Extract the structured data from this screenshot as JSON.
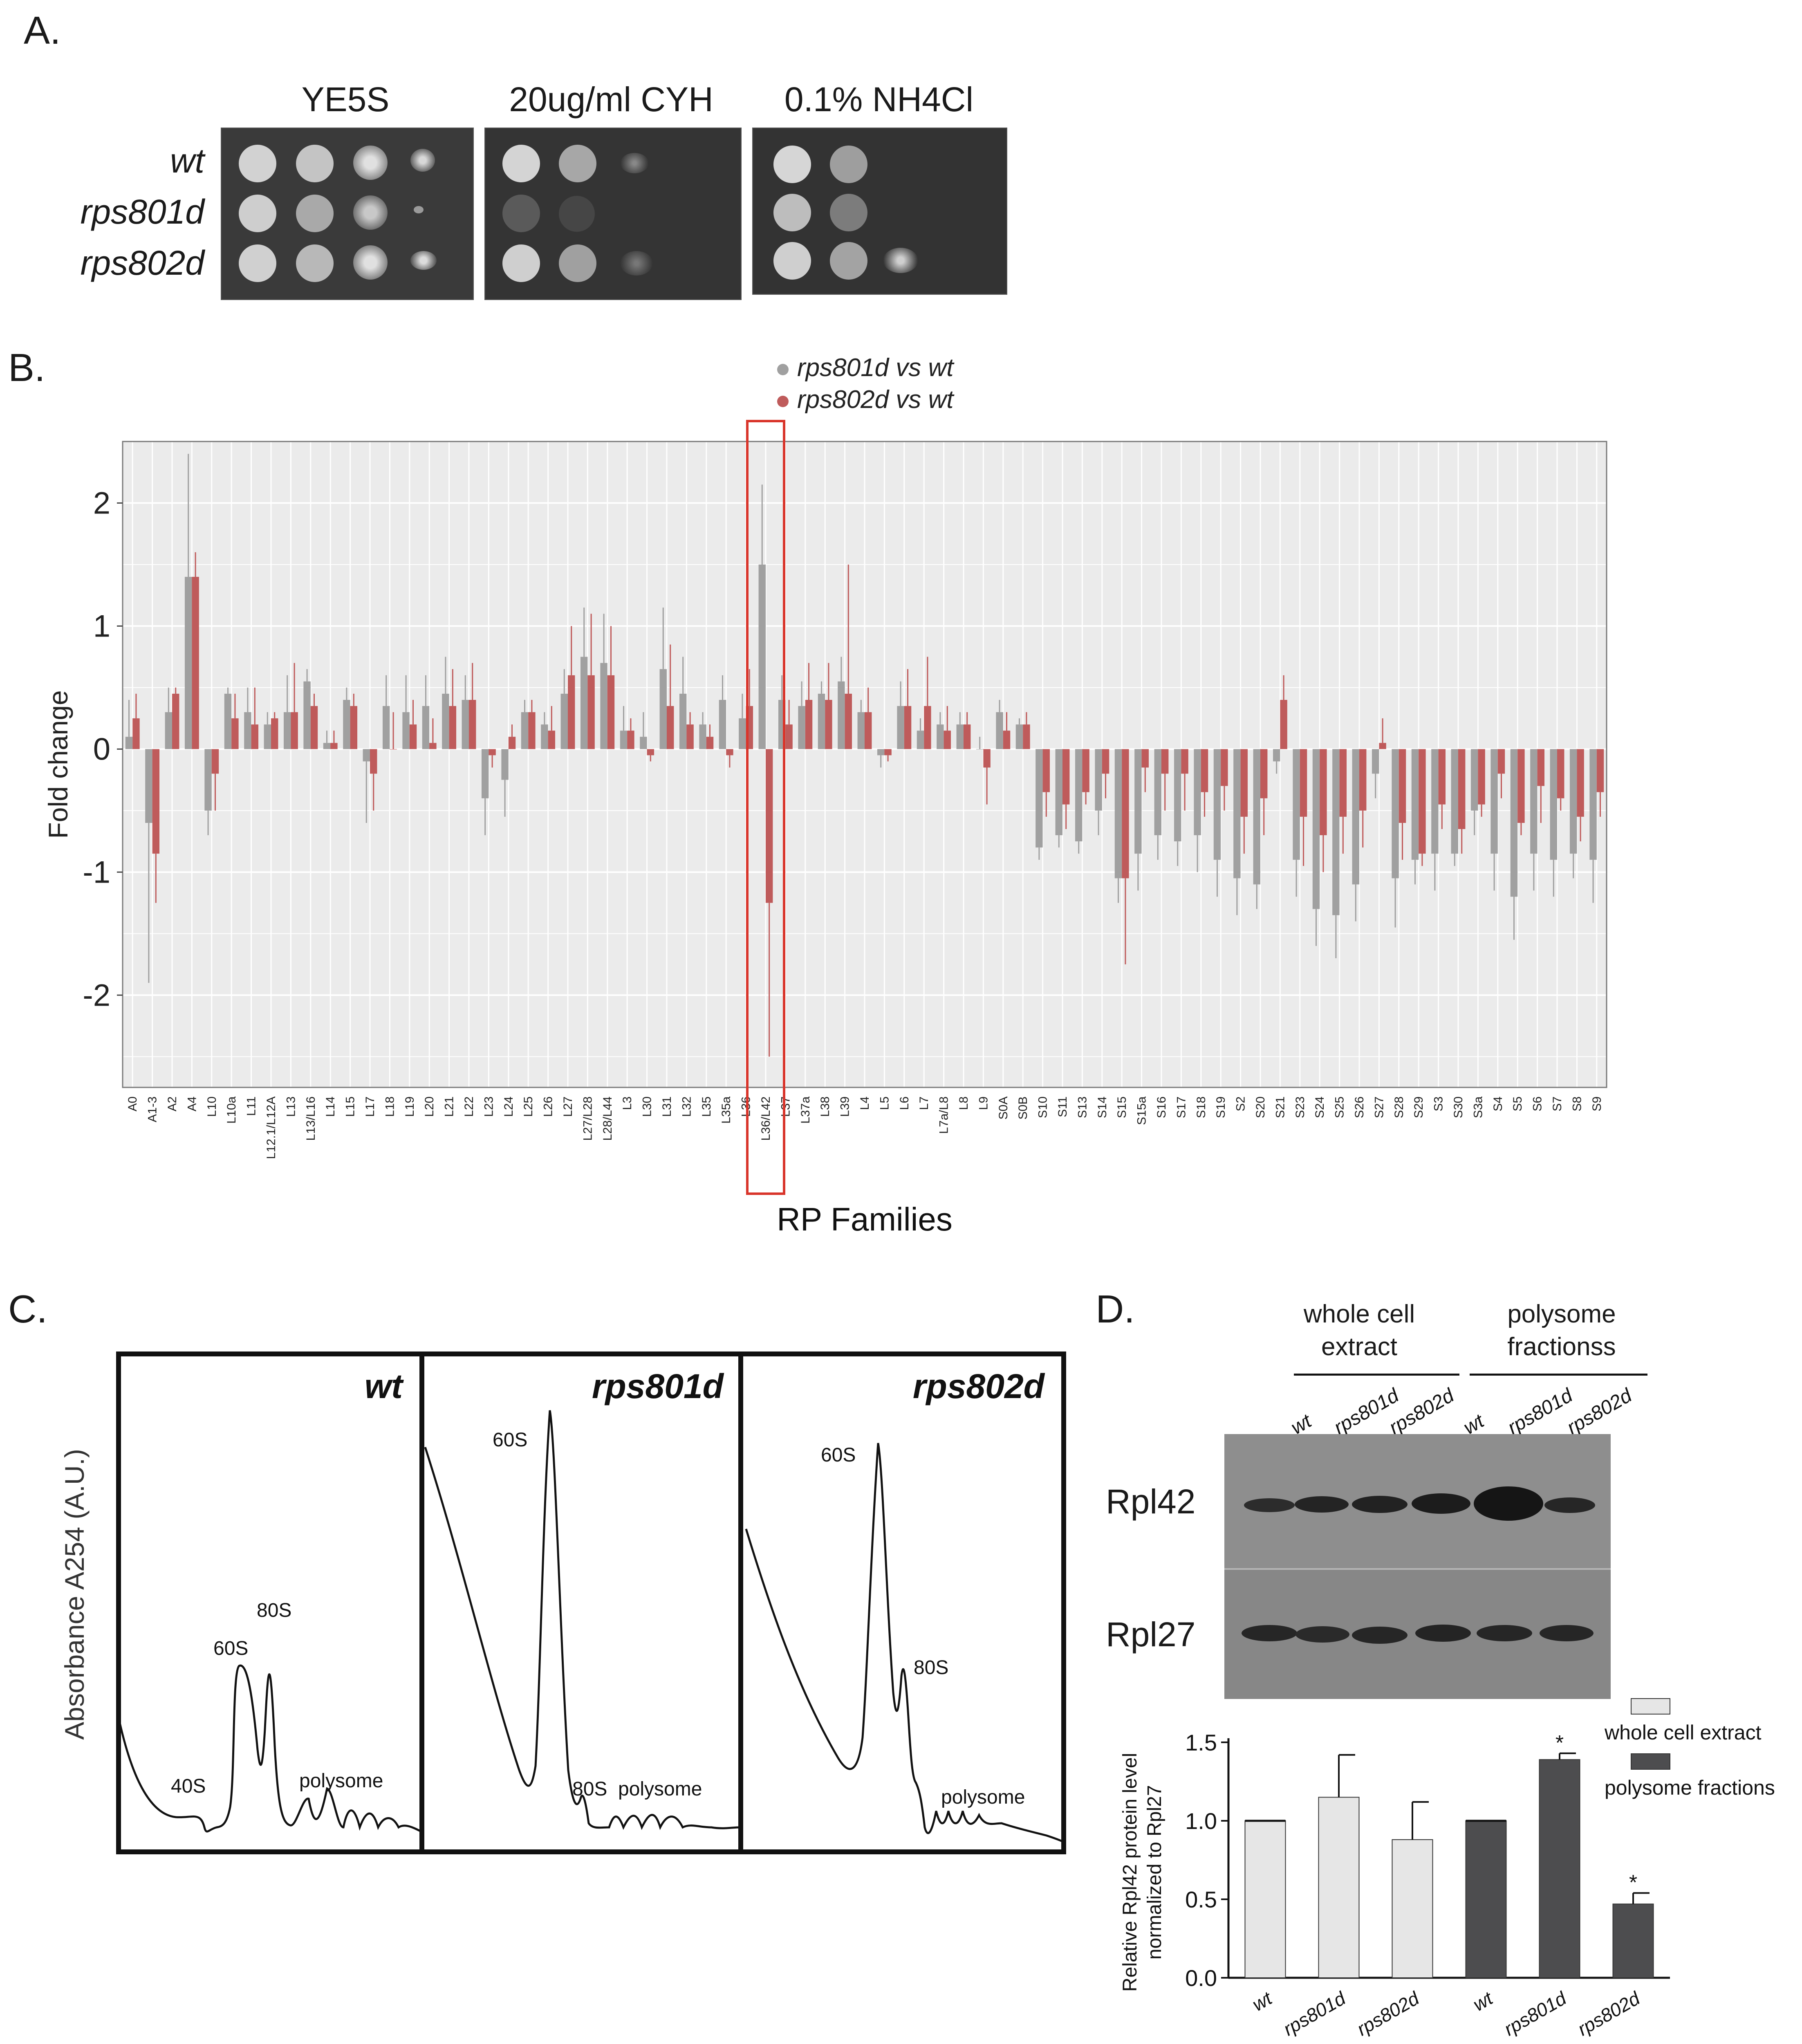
{
  "panels": {
    "a": {
      "label": "A.",
      "plate_titles": [
        "YE5S",
        "20ug/ml CYH",
        "0.1% NH4Cl"
      ],
      "strains": [
        "wt",
        "rps801d",
        "rps802d"
      ]
    },
    "b": {
      "label": "B.",
      "legend": [
        "rps801d vs wt",
        "rps802d vs wt"
      ]
    },
    "c": {
      "label": "C.",
      "ylabel": "Absorbance A254 (A.U.)",
      "profiles": [
        {
          "title": "wt",
          "peaks": [
            "40S",
            "60S",
            "80S",
            "polysome"
          ]
        },
        {
          "title": "rps801d",
          "peaks": [
            "60S",
            "80S",
            "polysome"
          ]
        },
        {
          "title": "rps802d",
          "peaks": [
            "60S",
            "80S",
            "polysome"
          ]
        }
      ]
    },
    "d": {
      "label": "D.",
      "groups": [
        "whole cell",
        "extract",
        "polysome",
        "fractionss"
      ],
      "lanes": [
        "wt",
        "rps801d",
        "rps802d",
        "wt",
        "rps801d",
        "rps802d"
      ],
      "blots": [
        "Rpl42",
        "Rpl27"
      ]
    }
  },
  "chart_data": [
    {
      "type": "bar",
      "title": "",
      "xlabel": "RP Families",
      "ylabel": "Fold change",
      "ylim": [
        -2.75,
        2.5
      ],
      "yticks": [
        -2,
        -1,
        0,
        1,
        2
      ],
      "grid": true,
      "legend_position": "top-center",
      "highlight_category": "L36/L42",
      "colors": {
        "rps801d vs wt": "#a0a0a0",
        "rps802d vs wt": "#bf5b5b",
        "highlight_box": "#d9352b"
      },
      "categories": [
        "A0",
        "A1-3",
        "A2",
        "A4",
        "L10",
        "L10a",
        "L11",
        "L12.1/L12A",
        "L13",
        "L13/L16",
        "L14",
        "L15",
        "L17",
        "L18",
        "L19",
        "L20",
        "L21",
        "L22",
        "L23",
        "L24",
        "L25",
        "L26",
        "L27",
        "L27/L28",
        "L28/L44",
        "L3",
        "L30",
        "L31",
        "L32",
        "L35",
        "L35a",
        "L36",
        "L36/L42",
        "L37",
        "L37a",
        "L38",
        "L39",
        "L4",
        "L5",
        "L6",
        "L7",
        "L7a/L8",
        "L8",
        "L9",
        "S0A",
        "S0B",
        "S10",
        "S11",
        "S13",
        "S14",
        "S15",
        "S15a",
        "S16",
        "S17",
        "S18",
        "S19",
        "S2",
        "S20",
        "S21",
        "S23",
        "S24",
        "S25",
        "S26",
        "S27",
        "S28",
        "S29",
        "S3",
        "S30",
        "S3a",
        "S4",
        "S5",
        "S6",
        "S7",
        "S8",
        "S9"
      ],
      "series": [
        {
          "name": "rps801d vs wt",
          "values": [
            0.1,
            -0.6,
            0.3,
            1.4,
            -0.5,
            0.45,
            0.3,
            0.2,
            0.3,
            0.55,
            0.05,
            0.4,
            -0.1,
            0.35,
            0.3,
            0.35,
            0.45,
            0.4,
            -0.4,
            -0.25,
            0.3,
            0.2,
            0.45,
            0.75,
            0.7,
            0.15,
            0.1,
            0.65,
            0.45,
            0.2,
            0.4,
            0.25,
            1.5,
            0.4,
            0.35,
            0.45,
            0.55,
            0.3,
            -0.05,
            0.35,
            0.15,
            0.2,
            0.2,
            0.0,
            0.3,
            0.2,
            -0.8,
            -0.7,
            -0.75,
            -0.5,
            -1.05,
            -0.85,
            -0.7,
            -0.75,
            -0.7,
            -0.9,
            -1.05,
            -1.1,
            -0.1,
            -0.9,
            -1.3,
            -1.35,
            -1.1,
            -0.2,
            -1.05,
            -0.9,
            -0.85,
            -0.85,
            -0.5,
            -0.85,
            -1.2,
            -0.85,
            -0.9,
            -0.85,
            -0.9
          ],
          "errors": [
            0.3,
            1.3,
            0.2,
            1.0,
            0.2,
            0.05,
            0.2,
            0.1,
            0.3,
            0.1,
            0.1,
            0.1,
            0.5,
            0.25,
            0.3,
            0.25,
            0.3,
            0.2,
            0.3,
            0.3,
            0.1,
            0.1,
            0.2,
            0.4,
            0.4,
            0.2,
            0.2,
            0.5,
            0.3,
            0.1,
            0.2,
            0.2,
            0.65,
            0.2,
            0.2,
            0.1,
            0.2,
            0.1,
            0.1,
            0.2,
            0.1,
            0.1,
            0.1,
            0.1,
            0.1,
            0.05,
            0.1,
            0.1,
            0.1,
            0.2,
            0.2,
            0.3,
            0.2,
            0.2,
            0.3,
            0.3,
            0.3,
            0.2,
            0.1,
            0.3,
            0.3,
            0.35,
            0.3,
            0.2,
            0.4,
            0.2,
            0.3,
            0.1,
            0.2,
            0.3,
            0.35,
            0.3,
            0.3,
            0.2,
            0.35
          ]
        },
        {
          "name": "rps802d vs wt",
          "values": [
            0.25,
            -0.85,
            0.45,
            1.4,
            -0.2,
            0.25,
            0.2,
            0.25,
            0.3,
            0.35,
            0.05,
            0.35,
            -0.2,
            0.0,
            0.2,
            0.05,
            0.35,
            0.4,
            -0.05,
            0.1,
            0.3,
            0.15,
            0.6,
            0.6,
            0.6,
            0.15,
            -0.05,
            0.35,
            0.2,
            0.1,
            -0.05,
            0.35,
            -1.25,
            0.2,
            0.4,
            0.4,
            0.45,
            0.3,
            -0.05,
            0.35,
            0.35,
            0.15,
            0.2,
            -0.15,
            0.15,
            0.2,
            -0.35,
            -0.45,
            -0.35,
            -0.2,
            -1.05,
            -0.15,
            -0.2,
            -0.2,
            -0.35,
            -0.3,
            -0.55,
            -0.4,
            0.4,
            -0.55,
            -0.7,
            -0.55,
            -0.5,
            0.05,
            -0.6,
            -0.85,
            -0.45,
            -0.65,
            -0.45,
            -0.2,
            -0.6,
            -0.3,
            -0.4,
            -0.55,
            -0.35
          ],
          "errors": [
            0.2,
            0.4,
            0.05,
            0.2,
            0.3,
            0.2,
            0.3,
            0.05,
            0.4,
            0.1,
            0.1,
            0.1,
            0.3,
            0.3,
            0.2,
            0.2,
            0.3,
            0.3,
            0.1,
            0.1,
            0.1,
            0.2,
            0.4,
            0.5,
            0.4,
            0.1,
            0.05,
            0.5,
            0.1,
            0.1,
            0.1,
            0.3,
            1.25,
            0.2,
            0.3,
            0.3,
            1.05,
            0.2,
            0.05,
            0.3,
            0.4,
            0.2,
            0.1,
            0.3,
            0.15,
            0.1,
            0.2,
            0.2,
            0.1,
            0.2,
            0.7,
            0.2,
            0.3,
            0.3,
            0.2,
            0.2,
            0.3,
            0.3,
            0.2,
            0.4,
            0.3,
            0.3,
            0.3,
            0.2,
            0.3,
            0.1,
            0.2,
            0.2,
            0.1,
            0.2,
            0.1,
            0.3,
            0.1,
            0.2,
            0.2
          ]
        }
      ]
    },
    {
      "type": "bar",
      "title": "",
      "xlabel": "",
      "ylabel": "Relative Rpl42 protein level normalized to Rpl27",
      "ylim": [
        0,
        1.5
      ],
      "yticks": [
        "0.0",
        "0.5",
        "1.0",
        "1.5"
      ],
      "categories": [
        "wt",
        "rps801d",
        "rps802d",
        "wt",
        "rps801d",
        "rps802d"
      ],
      "values": [
        1.0,
        1.15,
        0.88,
        1.0,
        1.39,
        0.47
      ],
      "errors": [
        0.01,
        0.27,
        0.24,
        0.01,
        0.04,
        0.07
      ],
      "significance": [
        "",
        "",
        "",
        "",
        "*",
        "*"
      ],
      "groups": [
        "whole cell extract",
        "whole cell extract",
        "whole cell extract",
        "polysome fractions",
        "polysome fractions",
        "polysome fractions"
      ],
      "legend": [
        "whole cell extract",
        "polysome fractions"
      ],
      "colors": {
        "whole cell extract": "#e6e6e6",
        "polysome fractions": "#4d4d4f"
      }
    }
  ]
}
